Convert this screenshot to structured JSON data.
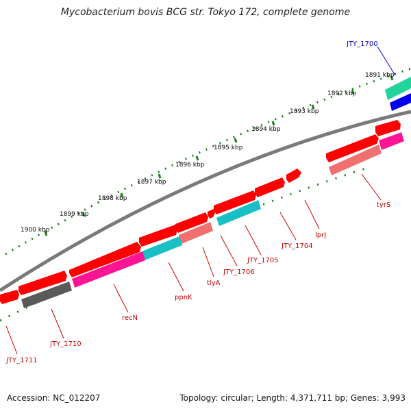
{
  "title": "Mycobacterium bovis BCG str. Tokyo 172, complete genome",
  "accession": "Accession: NC_012207",
  "summary": "Topology: circular; Length: 4,371,711 bp; Genes: 3,993",
  "colors": {
    "red": "#ff0000",
    "pink": "#ff1493",
    "cyan": "#18bfc4",
    "salmon": "#f07070",
    "gray": "#5a5a5a",
    "teal": "#22d39a",
    "blue": "#0000ee",
    "tick": "#1e7d1e"
  },
  "scale": {
    "ticks": [
      {
        "label": "1891 kbp"
      },
      {
        "label": "1892 kbp"
      },
      {
        "label": "1893 kbp"
      },
      {
        "label": "1894 kbp"
      },
      {
        "label": "1895 kbp"
      },
      {
        "label": "1896 kbp"
      },
      {
        "label": "1897 kbp"
      },
      {
        "label": "1898 kbp"
      },
      {
        "label": "1899 kbp"
      },
      {
        "label": "1900 kbp"
      }
    ]
  },
  "gene_labels": [
    {
      "name": "JTY_1700",
      "color": "#0000cc"
    },
    {
      "name": "tyrS",
      "color": "#cc0000"
    },
    {
      "name": "lprJ",
      "color": "#cc0000"
    },
    {
      "name": "JTY_1704",
      "color": "#cc0000"
    },
    {
      "name": "JTY_1705",
      "color": "#cc0000"
    },
    {
      "name": "JTY_1706",
      "color": "#cc0000"
    },
    {
      "name": "tlyA",
      "color": "#cc0000"
    },
    {
      "name": "ppnK",
      "color": "#cc0000"
    },
    {
      "name": "recN",
      "color": "#cc0000"
    },
    {
      "name": "JTY_1710",
      "color": "#cc0000"
    },
    {
      "name": "JTY_1711",
      "color": "#cc0000"
    }
  ]
}
